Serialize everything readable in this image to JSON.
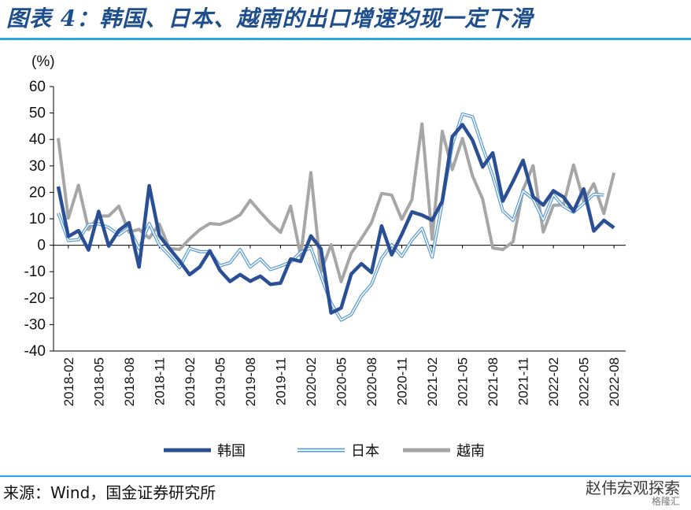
{
  "title": "图表 4：韩国、日本、越南的出口增速均现一定下滑",
  "source": "来源：Wind，国金证券研究所",
  "watermark": "赵伟宏观探索",
  "watermark2": "格隆汇",
  "colors": {
    "korea": "#2b4f94",
    "japan": "#5b9bd5",
    "vietnam": "#a6a6a6",
    "accent": "#2aa7e0"
  },
  "chart_data": {
    "type": "line",
    "unit_label": "(%)",
    "ylim": [
      -40,
      60
    ],
    "yticks": [
      -40,
      -30,
      -20,
      -10,
      0,
      10,
      20,
      30,
      40,
      50,
      60
    ],
    "xtick_labels": [
      "2018-02",
      "2018-05",
      "2018-08",
      "2018-11",
      "2019-02",
      "2019-05",
      "2019-08",
      "2019-11",
      "2020-02",
      "2020-05",
      "2020-08",
      "2020-11",
      "2021-02",
      "2021-05",
      "2021-08",
      "2021-11",
      "2022-02",
      "2022-05",
      "2022-08"
    ],
    "months": [
      "2018-01",
      "2018-02",
      "2018-03",
      "2018-04",
      "2018-05",
      "2018-06",
      "2018-07",
      "2018-08",
      "2018-09",
      "2018-10",
      "2018-11",
      "2018-12",
      "2019-01",
      "2019-02",
      "2019-03",
      "2019-04",
      "2019-05",
      "2019-06",
      "2019-07",
      "2019-08",
      "2019-09",
      "2019-10",
      "2019-11",
      "2019-12",
      "2020-01",
      "2020-02",
      "2020-03",
      "2020-04",
      "2020-05",
      "2020-06",
      "2020-07",
      "2020-08",
      "2020-09",
      "2020-10",
      "2020-11",
      "2020-12",
      "2021-01",
      "2021-02",
      "2021-03",
      "2021-04",
      "2021-05",
      "2021-06",
      "2021-07",
      "2021-08",
      "2021-09",
      "2021-10",
      "2021-11",
      "2021-12",
      "2022-01",
      "2022-02",
      "2022-03",
      "2022-04",
      "2022-05",
      "2022-06",
      "2022-07",
      "2022-08",
      "2022-09"
    ],
    "series": [
      {
        "name": "韩国",
        "key": "korea",
        "values": [
          22.2,
          3.3,
          5.5,
          -1.8,
          12.8,
          -0.3,
          5.6,
          8.5,
          -8.2,
          22.5,
          3.7,
          -1.2,
          -5.9,
          -11.1,
          -8.2,
          -2.1,
          -9.5,
          -13.7,
          -11.1,
          -13.6,
          -11.7,
          -14.8,
          -14.3,
          -5.2,
          -6.1,
          3.5,
          -1.4,
          -25.6,
          -23.7,
          -10.9,
          -7.0,
          -10.3,
          7.3,
          -3.6,
          4.1,
          12.6,
          11.4,
          9.5,
          16.6,
          41.1,
          45.6,
          39.7,
          29.6,
          34.9,
          16.7,
          24.1,
          32.1,
          18.3,
          15.2,
          20.6,
          18.2,
          12.9,
          21.3,
          5.4,
          9.4,
          6.6,
          null
        ]
      },
      {
        "name": "日本",
        "key": "japan",
        "values": [
          12.2,
          1.8,
          2.1,
          7.8,
          8.1,
          6.7,
          3.9,
          6.6,
          -1.3,
          8.2,
          0.1,
          -3.9,
          -8.4,
          -1.2,
          -2.4,
          -2.4,
          -7.8,
          -6.6,
          -1.6,
          -8.2,
          -5.2,
          -9.2,
          -7.9,
          -6.3,
          -2.6,
          -1.0,
          -11.7,
          -21.9,
          -28.3,
          -26.2,
          -19.2,
          -14.8,
          -4.9,
          0.2,
          -4.2,
          2.0,
          6.4,
          -4.5,
          16.1,
          38.0,
          49.6,
          48.6,
          37.0,
          26.2,
          13.0,
          9.4,
          20.5,
          17.5,
          9.6,
          19.1,
          14.7,
          12.5,
          15.8,
          19.3,
          19.0,
          null,
          null
        ]
      },
      {
        "name": "越南",
        "key": "vietnam",
        "values": [
          40.5,
          10.2,
          22.7,
          5.9,
          11.0,
          11.1,
          14.8,
          4.9,
          6.0,
          2.7,
          8.0,
          -1.2,
          -1.6,
          2.4,
          5.9,
          8.2,
          7.9,
          9.3,
          11.5,
          17.0,
          12.5,
          8.4,
          4.9,
          14.8,
          -4.1,
          27.5,
          -9.9,
          0.2,
          -13.8,
          -3.0,
          2.5,
          8.5,
          19.6,
          19.0,
          9.8,
          17.2,
          45.9,
          2.3,
          43.1,
          28.6,
          40.4,
          26.2,
          17.4,
          -1.0,
          -1.6,
          1.3,
          21.0,
          30.1,
          5.0,
          15.1,
          15.3,
          30.4,
          16.7,
          23.3,
          12.0,
          27.4,
          null
        ]
      }
    ]
  }
}
